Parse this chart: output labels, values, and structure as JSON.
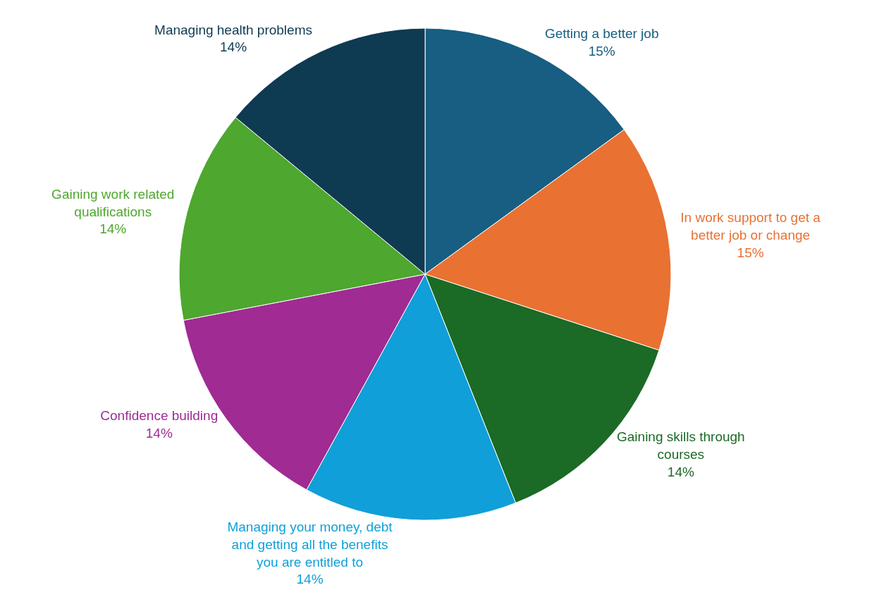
{
  "chart_data": {
    "type": "pie",
    "categories": [
      "Getting a better job",
      "In work support to get a better job or change",
      "Gaining skills through courses",
      "Managing your money, debt and getting all the benefits you are entitled to",
      "Confidence building",
      "Gaining work related qualifications",
      "Managing health problems"
    ],
    "values": [
      15,
      15,
      14,
      14,
      14,
      14,
      14
    ],
    "value_labels": [
      "15%",
      "15%",
      "14%",
      "14%",
      "14%",
      "14%",
      "14%"
    ],
    "colors": [
      "#175e82",
      "#e97132",
      "#1b6a25",
      "#109fd8",
      "#a02b93",
      "#4ea72e",
      "#0e3a52"
    ],
    "legend": false
  }
}
